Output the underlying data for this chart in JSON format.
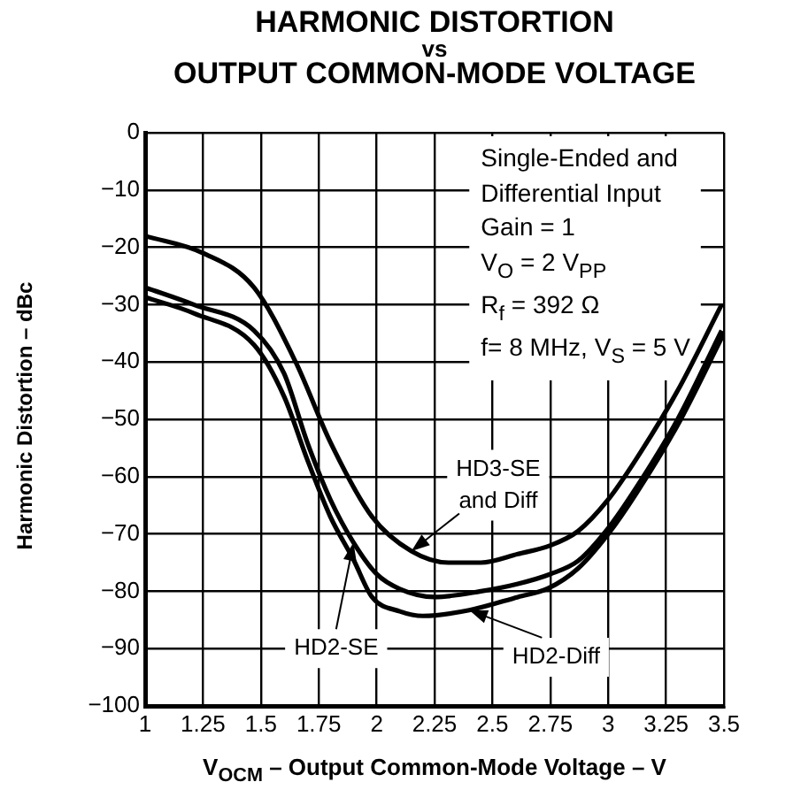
{
  "chart_data": {
    "type": "line",
    "title": "HARMONIC DISTORTION\nvs\nOUTPUT COMMON-MODE VOLTAGE",
    "xlabel": "V$_{OCM}$ – Output Common-Mode Voltage – V",
    "ylabel": "Harmonic Distortion – dBc",
    "annotations": [
      "Single-Ended and",
      "Differential Input",
      "Gain = 1",
      "V$_{O}$ = 2 V$_{PP}$",
      "R$_{f}$ = 392 Ω",
      "f= 8 MHz, V$_{S}$ = 5 V"
    ],
    "xlim": [
      1,
      3.5
    ],
    "xticks": [
      1,
      1.25,
      1.5,
      1.75,
      2,
      2.25,
      2.5,
      2.75,
      3,
      3.25,
      3.5
    ],
    "ylim": [
      -100,
      0
    ],
    "yticks": [
      -100,
      -90,
      -80,
      -70,
      -60,
      -50,
      -40,
      -30,
      -20,
      -10,
      0
    ],
    "grid": true,
    "marker": "none",
    "line_style": "solid",
    "series": [
      {
        "name": "HD3-SE and Diff",
        "color": "#000000",
        "x": [
          1,
          1.25,
          1.47,
          1.65,
          1.8,
          1.98,
          2.15,
          2.31,
          2.45,
          2.61,
          2.75,
          2.87,
          3,
          3.12,
          3.3,
          3.49
        ],
        "values": [
          -18,
          -21,
          -27,
          -40,
          -54,
          -67,
          -73,
          -75,
          -75,
          -73.5,
          -72,
          -69.5,
          -64,
          -57,
          -45,
          -30
        ]
      },
      {
        "name": "HD2-SE",
        "color": "#000000",
        "x": [
          1,
          1.21,
          1.47,
          1.6,
          1.7,
          1.8,
          1.9,
          2,
          2.1,
          2.25,
          2.45,
          2.61,
          2.75,
          2.87,
          3,
          3.12,
          3.3,
          3.49
        ],
        "values": [
          -27,
          -30,
          -34.5,
          -42,
          -54,
          -64,
          -71.5,
          -77,
          -79.6,
          -81,
          -80,
          -78.7,
          -77,
          -74.7,
          -69,
          -62,
          -50,
          -34.5
        ]
      },
      {
        "name": "HD2-Diff",
        "color": "#000000",
        "x": [
          1,
          1.21,
          1.47,
          1.6,
          1.7,
          1.8,
          1.9,
          1.98,
          2.1,
          2.2,
          2.4,
          2.61,
          2.74,
          2.87,
          3,
          3.12,
          3.3,
          3.5
        ],
        "values": [
          -28.7,
          -31.5,
          -37,
          -46,
          -57,
          -67,
          -74.5,
          -81,
          -83.5,
          -84.3,
          -83.3,
          -81,
          -79.5,
          -76,
          -70,
          -63,
          -51,
          -35
        ]
      }
    ]
  }
}
